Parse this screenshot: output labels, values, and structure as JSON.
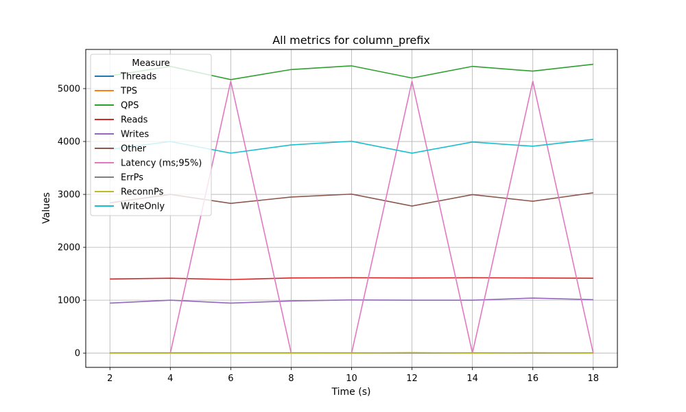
{
  "chart_data": {
    "type": "line",
    "title": "All metrics for column_prefix",
    "xlabel": "Time (s)",
    "ylabel": "Values",
    "xlim": [
      1.2,
      18.8
    ],
    "ylim": [
      -270,
      5740
    ],
    "xticks": [
      2,
      4,
      6,
      8,
      10,
      12,
      14,
      16,
      18
    ],
    "yticks": [
      0,
      1000,
      2000,
      3000,
      4000,
      5000
    ],
    "grid": true,
    "legend": {
      "title": "Measure",
      "placement": "upper-left"
    },
    "x": [
      2,
      4,
      6,
      8,
      10,
      12,
      14,
      16,
      18
    ],
    "series": [
      {
        "name": "Threads",
        "color": "#1f77b4",
        "values": [
          4,
          4,
          4,
          4,
          4,
          4,
          4,
          4,
          4
        ]
      },
      {
        "name": "TPS",
        "color": "#ff7f0e",
        "values": [
          0,
          0,
          0,
          0,
          0,
          0,
          0,
          0,
          0
        ]
      },
      {
        "name": "QPS",
        "color": "#2ca02c",
        "values": [
          5240,
          5420,
          5170,
          5360,
          5430,
          5200,
          5420,
          5330,
          5460
        ]
      },
      {
        "name": "Reads",
        "color": "#d62728",
        "values": [
          1400,
          1415,
          1390,
          1420,
          1425,
          1420,
          1425,
          1420,
          1415
        ]
      },
      {
        "name": "Writes",
        "color": "#9467bd",
        "values": [
          945,
          1000,
          945,
          985,
          1005,
          1000,
          1000,
          1040,
          1010
        ]
      },
      {
        "name": "Other",
        "color": "#8c564b",
        "values": [
          2840,
          3000,
          2830,
          2950,
          3005,
          2780,
          2995,
          2870,
          3030
        ]
      },
      {
        "name": "Latency (ms;95%)",
        "color": "#e377c2",
        "values": [
          0,
          0,
          5140,
          0,
          0,
          5140,
          0,
          5140,
          0
        ]
      },
      {
        "name": "ErrPs",
        "color": "#7f7f7f",
        "values": [
          0,
          0,
          0,
          0,
          0,
          0,
          0,
          0,
          0
        ]
      },
      {
        "name": "ReconnPs",
        "color": "#bcbd22",
        "values": [
          2,
          1,
          0,
          0,
          2,
          10,
          0,
          8,
          0
        ]
      },
      {
        "name": "WriteOnly",
        "color": "#17becf",
        "values": [
          3850,
          4000,
          3780,
          3935,
          4005,
          3780,
          3990,
          3910,
          4040
        ]
      }
    ]
  }
}
